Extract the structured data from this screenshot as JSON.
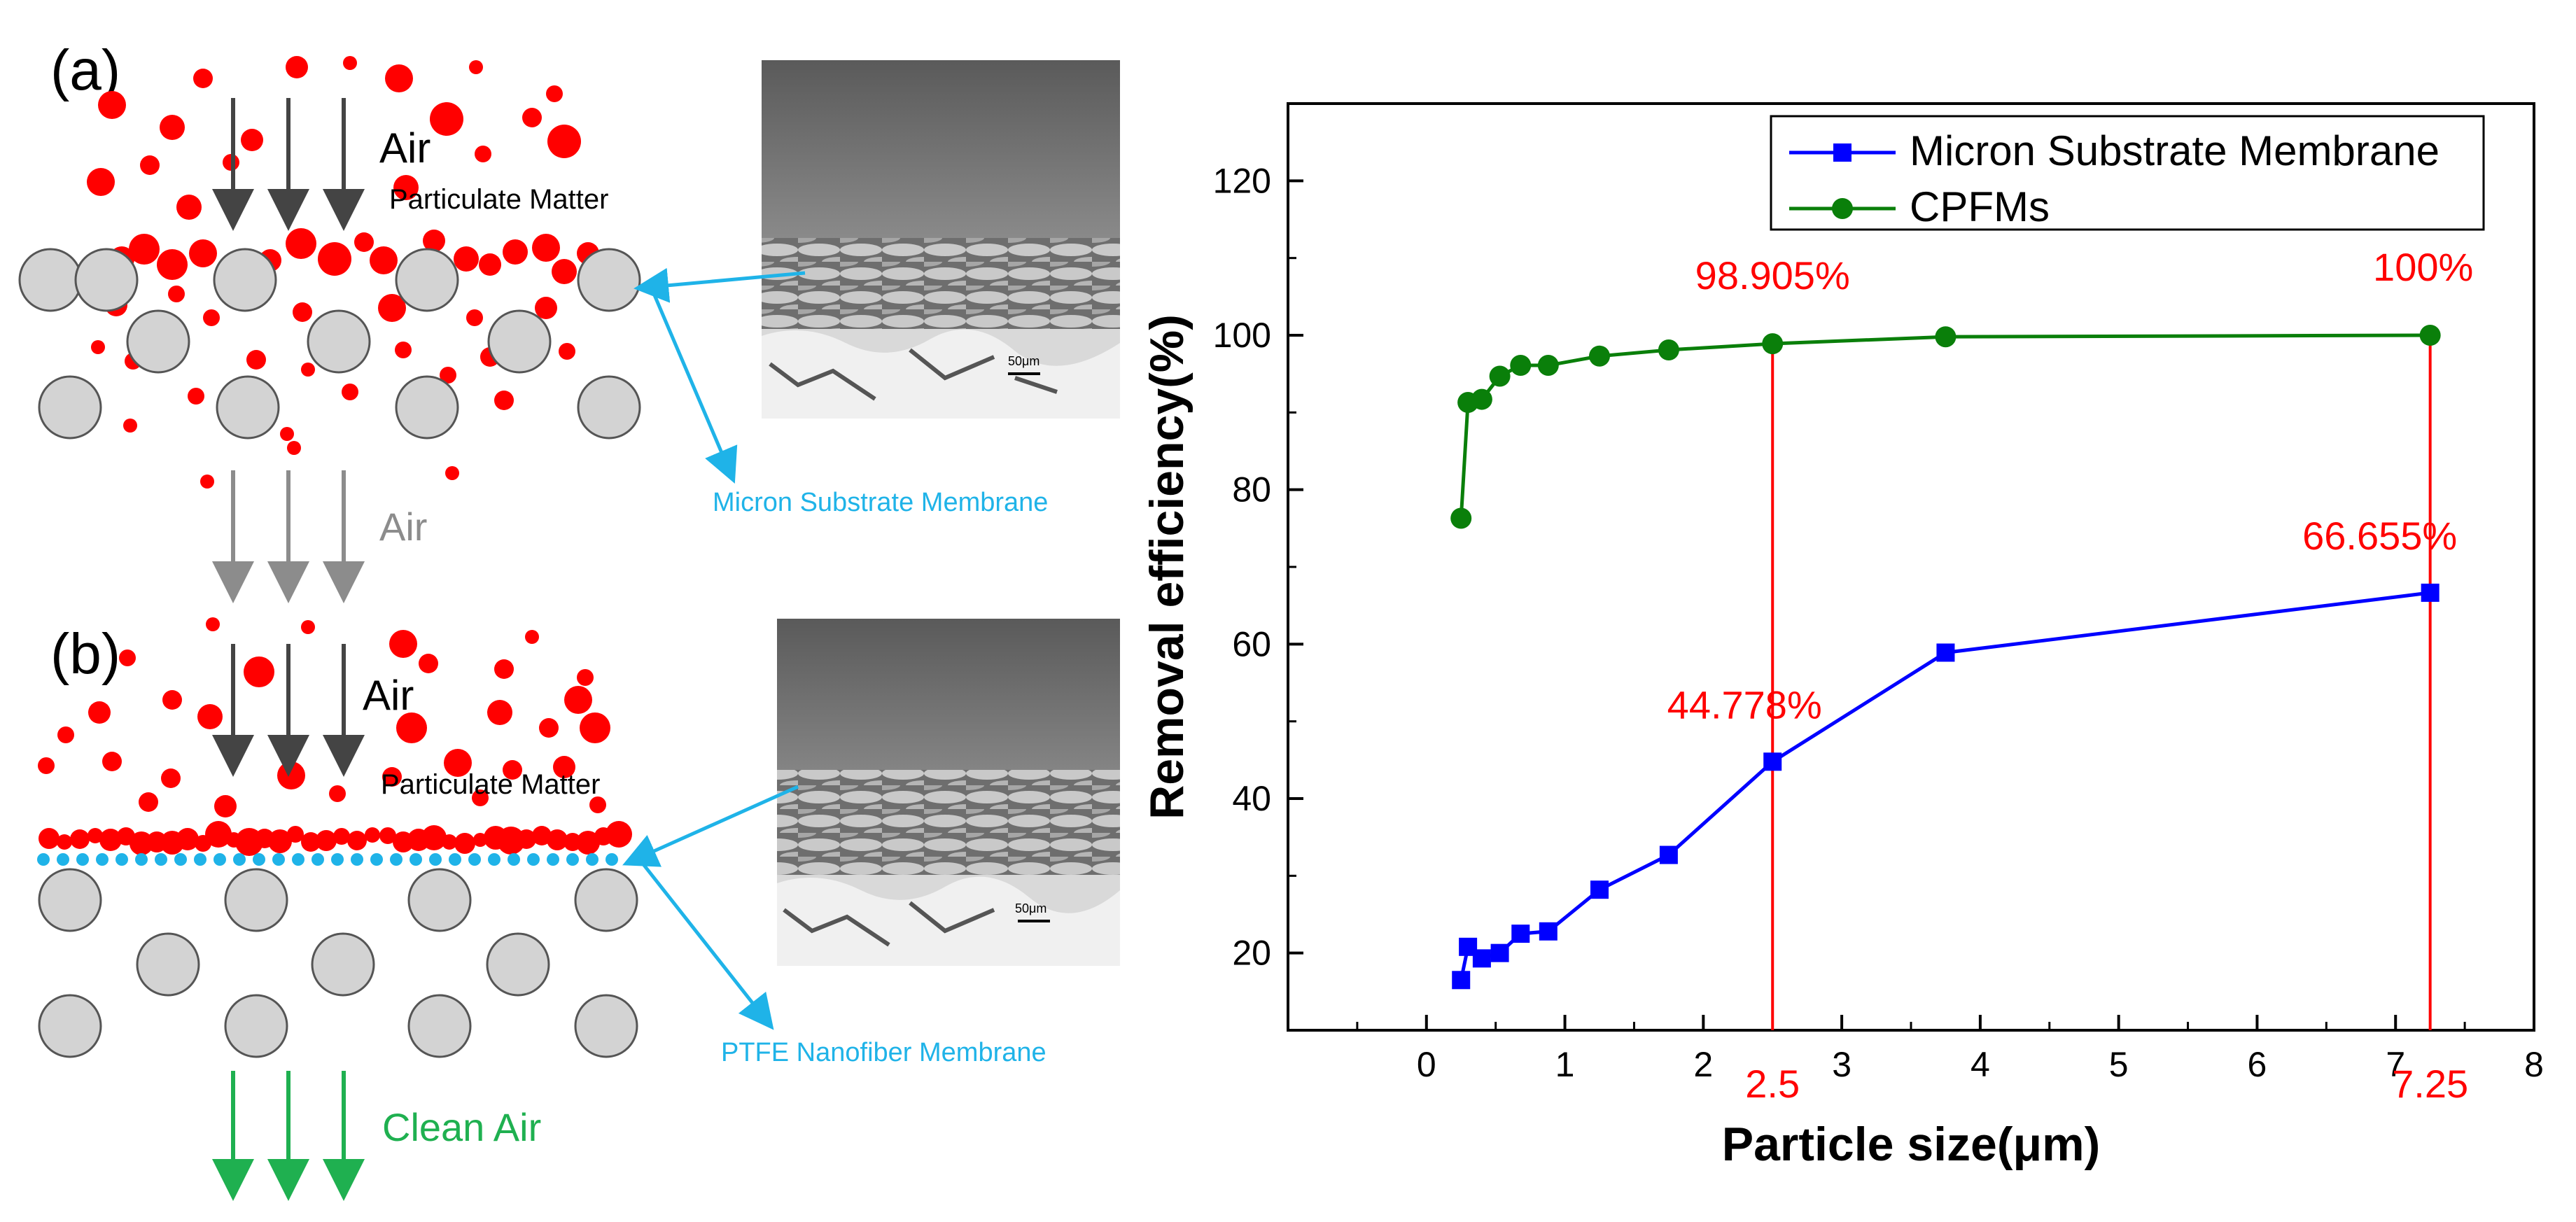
{
  "panels": {
    "a": {
      "letter": "(a)",
      "air_label": "Air",
      "pm_label": "Particulate Matter",
      "outlet_label": "Air",
      "membrane_label": "Micron Substrate Membrane"
    },
    "b": {
      "letter": "(b)",
      "air_label": "Air",
      "pm_label": "Particulate Matter",
      "outlet_label": "Clean Air",
      "membrane_label": "PTFE Nanofiber Membrane"
    },
    "sem_scale": "50μm"
  },
  "colors": {
    "particle": "#ff0000",
    "fiber": "#d3d3d3",
    "nanofiber": "#1fb3e8",
    "callout": "#1fb3e8",
    "clean_air": "#1fb050",
    "air_gray": "#8c8c8c",
    "blue_series": "#0000ff",
    "green_series": "#0a7f0a",
    "annot": "#ff0000"
  },
  "chart_data": {
    "type": "line",
    "xlabel": "Particle size(μm)",
    "ylabel": "Removal efficiency(%)",
    "xlim": [
      -1,
      8
    ],
    "ylim": [
      10,
      130
    ],
    "xticks": [
      0,
      1,
      2,
      3,
      4,
      5,
      6,
      7,
      8
    ],
    "yticks": [
      20,
      40,
      60,
      80,
      100,
      120
    ],
    "legend_position": "top-right",
    "series": [
      {
        "name": "Micron Substrate Membrane",
        "color": "#0000ff",
        "marker": "square",
        "x": [
          0.25,
          0.3,
          0.4,
          0.53,
          0.68,
          0.88,
          1.25,
          1.75,
          2.5,
          3.75,
          7.25
        ],
        "y": [
          16.5,
          20.8,
          19.3,
          20.0,
          22.5,
          22.8,
          28.2,
          32.7,
          44.778,
          58.9,
          66.655
        ]
      },
      {
        "name": "CPFMs",
        "color": "#0a7f0a",
        "marker": "circle",
        "x": [
          0.25,
          0.3,
          0.4,
          0.53,
          0.68,
          0.88,
          1.25,
          1.75,
          2.5,
          3.75,
          7.25
        ],
        "y": [
          76.3,
          91.3,
          91.7,
          94.7,
          96.1,
          96.1,
          97.3,
          98.1,
          98.905,
          99.8,
          100
        ]
      }
    ],
    "vlines": [
      2.5,
      7.25
    ],
    "vline_labels": [
      "2.5",
      "7.25"
    ],
    "annotations": [
      {
        "text": "98.905%",
        "x": 2.5,
        "y": 98.905,
        "series": 1
      },
      {
        "text": "100%",
        "x": 7.25,
        "y": 100,
        "series": 1
      },
      {
        "text": "44.778%",
        "x": 2.5,
        "y": 44.778,
        "series": 0
      },
      {
        "text": "66.655%",
        "x": 7.25,
        "y": 66.655,
        "series": 0
      }
    ]
  }
}
